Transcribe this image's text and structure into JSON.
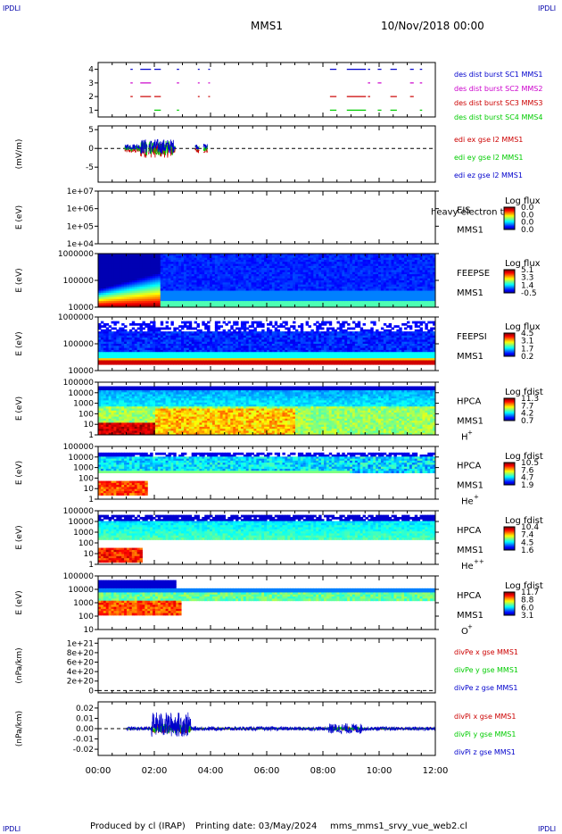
{
  "header": {
    "corner_left_top": "IPDLI",
    "corner_right_top": "IPDLI",
    "title": "MMS1",
    "date": "10/Nov/2018 00:00",
    "corner_left_bottom": "IPDLI",
    "corner_right_bottom": "IPDLI"
  },
  "footer": {
    "produced": "Produced by cl (IRAP)",
    "printing": "Printing date: 03/May/2024",
    "file": "mms_mms1_srvy_vue_web2.cl"
  },
  "colors": {
    "red": "#cc0000",
    "green": "#00cc00",
    "blue": "#0000cc",
    "magenta": "#cc00cc"
  },
  "chart_data": [
    {
      "type": "scatter",
      "id": "burst",
      "ylim": [
        0.5,
        4.5
      ],
      "yticks": [
        "1",
        "2",
        "3",
        "4"
      ],
      "series": [
        {
          "name": "des dist burst SC1 MMS1",
          "color": "#0000cc",
          "y": 4
        },
        {
          "name": "des dist burst SC2 MMS2",
          "color": "#cc00cc",
          "y": 3
        },
        {
          "name": "des dist burst SC3 MMS3",
          "color": "#cc0000",
          "y": 2
        },
        {
          "name": "des dist burst SC4 MMS4",
          "color": "#00cc00",
          "y": 1
        }
      ],
      "intervals": [
        [
          1.15,
          1.2
        ],
        [
          1.5,
          1.85
        ],
        [
          2.0,
          2.2
        ],
        [
          2.8,
          2.85
        ],
        [
          3.55,
          3.58
        ],
        [
          3.92,
          3.95
        ],
        [
          8.25,
          8.45
        ],
        [
          8.85,
          9.5
        ],
        [
          9.6,
          9.65
        ],
        [
          9.95,
          10.05
        ],
        [
          10.4,
          10.6
        ],
        [
          11.1,
          11.2
        ],
        [
          11.45,
          11.5
        ]
      ]
    },
    {
      "type": "line",
      "id": "edi",
      "ylabel": "(mV/m)",
      "ylim": [
        -9,
        6
      ],
      "yticks": [
        "5",
        "0",
        "-5"
      ],
      "series": [
        {
          "name": "edi ex gse l2 MMS1",
          "color": "#cc0000"
        },
        {
          "name": "edi ey gse l2 MMS1",
          "color": "#00cc00"
        },
        {
          "name": "edi ez gse l2 MMS1",
          "color": "#0000cc"
        }
      ],
      "time_range_hours": [
        0.9,
        3.9
      ]
    },
    {
      "type": "heatmap",
      "id": "eis",
      "ylabel": "E (eV)",
      "yticks": [
        "1e+07",
        "1e+06",
        "1e+05",
        "1e+04"
      ],
      "label1": "EIS",
      "label2": "MMS1",
      "overlay": "heavy electron to",
      "cbar_title": "Log flux",
      "cbar_ticks": [
        "0.0",
        "0.0",
        "0.0",
        "0.0"
      ]
    },
    {
      "type": "heatmap",
      "id": "feepse",
      "ylabel": "E (eV)",
      "yticks": [
        "1000000",
        "100000",
        "10000"
      ],
      "label1": "FEEPSE",
      "label2": "MMS1",
      "cbar_title": "Log flux",
      "cbar_ticks": [
        "5.1",
        "3.3",
        "1.4",
        "-0.5"
      ]
    },
    {
      "type": "heatmap",
      "id": "feepsi",
      "ylabel": "E (eV)",
      "yticks": [
        "1000000",
        "100000",
        "10000"
      ],
      "label1": "FEEPSI",
      "label2": "MMS1",
      "cbar_title": "Log flux",
      "cbar_ticks": [
        "4.5",
        "3.1",
        "1.7",
        "0.2"
      ]
    },
    {
      "type": "heatmap",
      "id": "hpca_h",
      "ylabel": "E (eV)",
      "yticks": [
        "100000",
        "10000",
        "1000",
        "100",
        "10",
        "1"
      ],
      "label1": "HPCA",
      "label2": "MMS1",
      "species": "H",
      "species_sup": "+",
      "cbar_title": "Log fdist",
      "cbar_ticks": [
        "11.3",
        "7.7",
        "4.2",
        "0.7"
      ]
    },
    {
      "type": "heatmap",
      "id": "hpca_he",
      "ylabel": "E (eV)",
      "yticks": [
        "100000",
        "10000",
        "1000",
        "100",
        "10",
        "1"
      ],
      "label1": "HPCA",
      "label2": "MMS1",
      "species": "He",
      "species_sup": "+",
      "cbar_title": "Log fdist",
      "cbar_ticks": [
        "10.5",
        "7.6",
        "4.7",
        "1.9"
      ]
    },
    {
      "type": "heatmap",
      "id": "hpca_hepp",
      "ylabel": "E (eV)",
      "yticks": [
        "100000",
        "10000",
        "1000",
        "100",
        "10",
        "1"
      ],
      "label1": "HPCA",
      "label2": "MMS1",
      "species": "He",
      "species_sup": "++",
      "cbar_title": "Log fdist",
      "cbar_ticks": [
        "10.4",
        "7.4",
        "4.5",
        "1.6"
      ]
    },
    {
      "type": "heatmap",
      "id": "hpca_o",
      "ylabel": "E (eV)",
      "yticks": [
        "100000",
        "10000",
        "1000",
        "100",
        "10"
      ],
      "label1": "HPCA",
      "label2": "MMS1",
      "species": "O",
      "species_sup": "+",
      "cbar_title": "Log fdist",
      "cbar_ticks": [
        "11.7",
        "8.8",
        "6.0",
        "3.1"
      ]
    },
    {
      "type": "line",
      "id": "divpe",
      "ylabel": "(nPa/km)",
      "ylim": [
        -5e+19,
        1.1e+21
      ],
      "yticks": [
        "1e+21",
        "8e+20",
        "6e+20",
        "4e+20",
        "2e+20",
        "0"
      ],
      "series": [
        {
          "name": "divPe x gse MMS1",
          "color": "#cc0000"
        },
        {
          "name": "divPe y gse MMS1",
          "color": "#00cc00"
        },
        {
          "name": "divPe z gse MMS1",
          "color": "#0000cc"
        }
      ]
    },
    {
      "type": "line",
      "id": "divpi",
      "ylabel": "(nPa/km)",
      "ylim": [
        -0.026,
        0.026
      ],
      "yticks": [
        "0.02",
        "0.01",
        "0.00",
        "-0.01",
        "-0.02"
      ],
      "series": [
        {
          "name": "divPi x gse MMS1",
          "color": "#cc0000"
        },
        {
          "name": "divPi y gse MMS1",
          "color": "#00cc00"
        },
        {
          "name": "divPi z gse MMS1",
          "color": "#0000cc"
        }
      ],
      "time_range_hours": [
        1.0,
        12.0
      ]
    }
  ],
  "time_axis": {
    "range_hours": [
      0,
      12
    ],
    "tick_labels": [
      "00:00",
      "02:00",
      "04:00",
      "06:00",
      "08:00",
      "10:00",
      "12:00"
    ]
  }
}
